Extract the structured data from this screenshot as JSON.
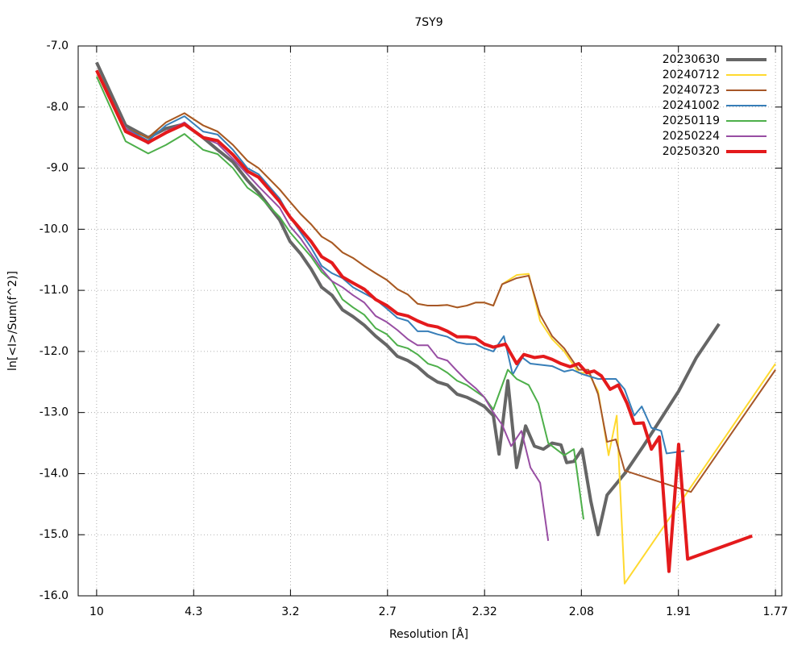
{
  "chart_data": {
    "type": "line",
    "title": "7SY9",
    "x_label": "Resolution [Å]",
    "y_label": "ln[<I>/Sum(f^2)]",
    "xlim": [
      0.0016,
      0.3221
    ],
    "ylim": [
      -16,
      -7
    ],
    "xticks": [
      {
        "value": 0.01,
        "label": "10"
      },
      {
        "value": 0.0542,
        "label": "4.3"
      },
      {
        "value": 0.0983,
        "label": "3.2"
      },
      {
        "value": 0.1425,
        "label": "2.7"
      },
      {
        "value": 0.1867,
        "label": "2.32"
      },
      {
        "value": 0.2308,
        "label": "2.08"
      },
      {
        "value": 0.275,
        "label": "1.91"
      },
      {
        "value": 0.3192,
        "label": "1.77"
      }
    ],
    "yticks": [
      {
        "value": -7,
        "label": "-7.0"
      },
      {
        "value": -8,
        "label": "-8.0"
      },
      {
        "value": -9,
        "label": "-9.0"
      },
      {
        "value": -10,
        "label": "-10.0"
      },
      {
        "value": -11,
        "label": "-11.0"
      },
      {
        "value": -12,
        "label": "-12.0"
      },
      {
        "value": -13,
        "label": "-13.0"
      },
      {
        "value": -14,
        "label": "-14.0"
      },
      {
        "value": -15,
        "label": "-15.0"
      },
      {
        "value": -16,
        "label": "-16.0"
      }
    ],
    "grid": true,
    "legend": "top-right",
    "series": [
      {
        "name": "20230630",
        "color": "#666666",
        "width": 4,
        "x": [
          0.01,
          0.0232,
          0.0335,
          0.0416,
          0.05,
          0.0585,
          0.0651,
          0.0721,
          0.0787,
          0.0838,
          0.0934,
          0.0981,
          0.1029,
          0.1077,
          0.1125,
          0.1172,
          0.122,
          0.1268,
          0.1319,
          0.1371,
          0.1422,
          0.147,
          0.1518,
          0.1562,
          0.1609,
          0.1653,
          0.1698,
          0.1742,
          0.1786,
          0.1826,
          0.1866,
          0.1907,
          0.1933,
          0.1973,
          0.2013,
          0.2054,
          0.2094,
          0.2135,
          0.2175,
          0.2215,
          0.2241,
          0.2274,
          0.2311,
          0.2351,
          0.2384,
          0.2425,
          0.2505,
          0.259,
          0.2671,
          0.2751,
          0.2832,
          0.2935
        ],
        "values": [
          -7.27,
          -8.3,
          -8.5,
          -8.35,
          -8.28,
          -8.5,
          -8.7,
          -8.9,
          -9.2,
          -9.4,
          -9.85,
          -10.2,
          -10.4,
          -10.65,
          -10.95,
          -11.08,
          -11.32,
          -11.43,
          -11.57,
          -11.75,
          -11.9,
          -12.08,
          -12.15,
          -12.25,
          -12.4,
          -12.5,
          -12.55,
          -12.7,
          -12.75,
          -12.82,
          -12.9,
          -13.05,
          -13.68,
          -12.48,
          -13.9,
          -13.22,
          -13.55,
          -13.6,
          -13.5,
          -13.53,
          -13.82,
          -13.8,
          -13.6,
          -14.45,
          -15.0,
          -14.35,
          -14.0,
          -13.55,
          -13.1,
          -12.65,
          -12.1,
          -11.55
        ]
      },
      {
        "name": "20240712",
        "color": "#ffd92f",
        "width": 2,
        "x": [
          0.01,
          0.0232,
          0.0335,
          0.0416,
          0.05,
          0.0585,
          0.0651,
          0.0721,
          0.0787,
          0.0838,
          0.0934,
          0.0981,
          0.1029,
          0.1077,
          0.1125,
          0.1172,
          0.122,
          0.1268,
          0.1319,
          0.1371,
          0.1422,
          0.147,
          0.1518,
          0.1562,
          0.1609,
          0.1653,
          0.1698,
          0.1742,
          0.1786,
          0.1826,
          0.1866,
          0.1907,
          0.1947,
          0.2013,
          0.2068,
          0.212,
          0.2175,
          0.223,
          0.2296,
          0.234,
          0.2384,
          0.2432,
          0.2469,
          0.2505,
          0.3192
        ],
        "values": [
          -7.4,
          -8.35,
          -8.5,
          -8.25,
          -8.1,
          -8.3,
          -8.4,
          -8.62,
          -8.88,
          -9.0,
          -9.35,
          -9.55,
          -9.75,
          -9.92,
          -10.12,
          -10.22,
          -10.38,
          -10.47,
          -10.6,
          -10.72,
          -10.83,
          -10.98,
          -11.07,
          -11.22,
          -11.25,
          -11.25,
          -11.24,
          -11.28,
          -11.25,
          -11.2,
          -11.2,
          -11.25,
          -10.9,
          -10.75,
          -10.73,
          -11.5,
          -11.8,
          -12.0,
          -12.35,
          -12.35,
          -12.65,
          -13.7,
          -13.05,
          -15.8,
          -12.2
        ]
      },
      {
        "name": "20240723",
        "color": "#a65628",
        "width": 2,
        "x": [
          0.01,
          0.0232,
          0.0335,
          0.0416,
          0.05,
          0.0585,
          0.0651,
          0.0721,
          0.0787,
          0.0838,
          0.0934,
          0.0981,
          0.1029,
          0.1077,
          0.1125,
          0.1172,
          0.122,
          0.1268,
          0.1319,
          0.1371,
          0.1422,
          0.147,
          0.1518,
          0.1562,
          0.1609,
          0.1653,
          0.1698,
          0.1742,
          0.1786,
          0.1826,
          0.1866,
          0.1907,
          0.1947,
          0.2013,
          0.2068,
          0.212,
          0.2175,
          0.223,
          0.2296,
          0.234,
          0.2384,
          0.2425,
          0.2465,
          0.2505,
          0.2807,
          0.3192
        ],
        "values": [
          -7.4,
          -8.35,
          -8.5,
          -8.25,
          -8.1,
          -8.3,
          -8.4,
          -8.62,
          -8.88,
          -9.0,
          -9.35,
          -9.55,
          -9.75,
          -9.92,
          -10.12,
          -10.22,
          -10.38,
          -10.47,
          -10.6,
          -10.72,
          -10.83,
          -10.98,
          -11.07,
          -11.22,
          -11.25,
          -11.25,
          -11.24,
          -11.28,
          -11.25,
          -11.2,
          -11.2,
          -11.25,
          -10.9,
          -10.8,
          -10.76,
          -11.4,
          -11.75,
          -11.95,
          -12.3,
          -12.3,
          -12.7,
          -13.48,
          -13.44,
          -13.95,
          -14.3,
          -12.3
        ]
      },
      {
        "name": "20241002",
        "color": "#377eb8",
        "width": 2,
        "x": [
          0.01,
          0.0232,
          0.0335,
          0.0416,
          0.05,
          0.0585,
          0.0651,
          0.0721,
          0.0787,
          0.0838,
          0.0934,
          0.0981,
          0.1029,
          0.1077,
          0.1125,
          0.1172,
          0.122,
          0.1268,
          0.1319,
          0.1371,
          0.1422,
          0.147,
          0.1518,
          0.1562,
          0.1609,
          0.1653,
          0.1698,
          0.1742,
          0.1786,
          0.1826,
          0.1866,
          0.1907,
          0.1955,
          0.1995,
          0.2039,
          0.2076,
          0.2175,
          0.223,
          0.2267,
          0.2311,
          0.2384,
          0.2465,
          0.2505,
          0.2549,
          0.2583,
          0.2627,
          0.2671,
          0.2696,
          0.2777
        ],
        "values": [
          -7.4,
          -8.35,
          -8.55,
          -8.3,
          -8.15,
          -8.4,
          -8.45,
          -8.7,
          -9.0,
          -9.1,
          -9.5,
          -9.8,
          -10.05,
          -10.3,
          -10.6,
          -10.72,
          -10.8,
          -10.95,
          -11.05,
          -11.15,
          -11.3,
          -11.45,
          -11.5,
          -11.67,
          -11.67,
          -11.72,
          -11.76,
          -11.85,
          -11.88,
          -11.88,
          -11.95,
          -12.0,
          -11.75,
          -12.38,
          -12.1,
          -12.2,
          -12.24,
          -12.33,
          -12.3,
          -12.37,
          -12.45,
          -12.45,
          -12.62,
          -13.05,
          -12.9,
          -13.25,
          -13.3,
          -13.67,
          -13.63
        ]
      },
      {
        "name": "20250119",
        "color": "#4daf4a",
        "width": 2,
        "x": [
          0.01,
          0.0232,
          0.0335,
          0.0416,
          0.05,
          0.0585,
          0.0651,
          0.0721,
          0.0787,
          0.0838,
          0.0934,
          0.0981,
          0.1029,
          0.1077,
          0.1125,
          0.1172,
          0.122,
          0.1268,
          0.1319,
          0.1371,
          0.1422,
          0.147,
          0.1518,
          0.1562,
          0.1609,
          0.1653,
          0.1698,
          0.1742,
          0.1786,
          0.1826,
          0.1866,
          0.1907,
          0.1973,
          0.2013,
          0.2068,
          0.2112,
          0.2157,
          0.223,
          0.2274,
          0.2318
        ],
        "values": [
          -7.5,
          -8.56,
          -8.76,
          -8.62,
          -8.44,
          -8.7,
          -8.77,
          -9.0,
          -9.32,
          -9.45,
          -9.8,
          -10.05,
          -10.25,
          -10.45,
          -10.7,
          -10.85,
          -11.15,
          -11.28,
          -11.4,
          -11.62,
          -11.72,
          -11.9,
          -11.95,
          -12.05,
          -12.2,
          -12.25,
          -12.35,
          -12.48,
          -12.55,
          -12.65,
          -12.75,
          -12.95,
          -12.3,
          -12.45,
          -12.55,
          -12.85,
          -13.5,
          -13.7,
          -13.6,
          -14.75
        ]
      },
      {
        "name": "20250224",
        "color": "#984ea3",
        "width": 2,
        "x": [
          0.01,
          0.0232,
          0.0335,
          0.0416,
          0.05,
          0.0585,
          0.0651,
          0.0721,
          0.0787,
          0.0838,
          0.0934,
          0.0981,
          0.1029,
          0.1077,
          0.1125,
          0.1172,
          0.122,
          0.1268,
          0.1319,
          0.1371,
          0.1422,
          0.147,
          0.1518,
          0.1562,
          0.1609,
          0.1653,
          0.1698,
          0.1742,
          0.1786,
          0.1826,
          0.1866,
          0.1907,
          0.1947,
          0.1988,
          0.2035,
          0.2076,
          0.212,
          0.2157
        ],
        "values": [
          -7.4,
          -8.35,
          -8.6,
          -8.4,
          -8.25,
          -8.5,
          -8.6,
          -8.85,
          -9.1,
          -9.3,
          -9.65,
          -9.95,
          -10.15,
          -10.4,
          -10.65,
          -10.85,
          -10.95,
          -11.08,
          -11.2,
          -11.42,
          -11.52,
          -11.65,
          -11.8,
          -11.9,
          -11.9,
          -12.1,
          -12.15,
          -12.32,
          -12.48,
          -12.6,
          -12.75,
          -13.0,
          -13.2,
          -13.55,
          -13.3,
          -13.9,
          -14.15,
          -15.1
        ]
      },
      {
        "name": "20250320",
        "color": "#e41a1c",
        "width": 4,
        "x": [
          0.01,
          0.0232,
          0.0335,
          0.0416,
          0.05,
          0.0585,
          0.0651,
          0.0721,
          0.0787,
          0.0838,
          0.0934,
          0.0981,
          0.1029,
          0.1077,
          0.1125,
          0.1172,
          0.122,
          0.1268,
          0.1319,
          0.1371,
          0.1422,
          0.147,
          0.1518,
          0.1562,
          0.1609,
          0.1653,
          0.1698,
          0.1742,
          0.1786,
          0.1826,
          0.1866,
          0.1907,
          0.1962,
          0.2013,
          0.2046,
          0.2094,
          0.2135,
          0.2175,
          0.2215,
          0.2256,
          0.2296,
          0.2333,
          0.2366,
          0.2399,
          0.2439,
          0.2476,
          0.2516,
          0.2549,
          0.259,
          0.2627,
          0.2663,
          0.2707,
          0.2751,
          0.2792,
          0.3086
        ],
        "values": [
          -7.4,
          -8.4,
          -8.58,
          -8.42,
          -8.28,
          -8.5,
          -8.55,
          -8.78,
          -9.05,
          -9.15,
          -9.55,
          -9.8,
          -10.0,
          -10.2,
          -10.45,
          -10.55,
          -10.78,
          -10.88,
          -10.98,
          -11.15,
          -11.25,
          -11.38,
          -11.42,
          -11.5,
          -11.57,
          -11.6,
          -11.67,
          -11.76,
          -11.76,
          -11.78,
          -11.88,
          -11.93,
          -11.88,
          -12.2,
          -12.05,
          -12.1,
          -12.08,
          -12.13,
          -12.2,
          -12.25,
          -12.2,
          -12.35,
          -12.32,
          -12.4,
          -12.62,
          -12.55,
          -12.85,
          -13.18,
          -13.17,
          -13.6,
          -13.4,
          -15.6,
          -13.52,
          -15.4,
          -15.02
        ]
      }
    ]
  }
}
